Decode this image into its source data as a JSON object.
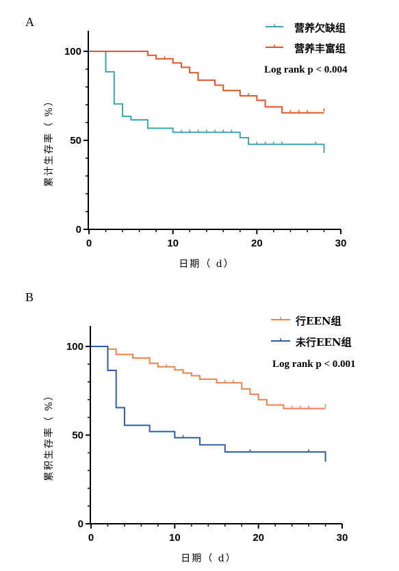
{
  "chart_data": [
    {
      "type": "line",
      "panel_label": "A",
      "xlabel": "日期（ d）",
      "ylabel": "累计生存率（ %）",
      "xlim": [
        0,
        30
      ],
      "ylim": [
        0,
        100
      ],
      "xticks": [
        0,
        10,
        20,
        30
      ],
      "yticks": [
        0,
        50,
        100
      ],
      "annotation": "Log rank p < 0.004",
      "legend_position": "top-right",
      "series": [
        {
          "name": "营养欠缺组",
          "color": "#3aa5b0",
          "steps": [
            [
              0,
              100
            ],
            [
              2,
              88.5
            ],
            [
              3,
              70.5
            ],
            [
              4,
              63.5
            ],
            [
              5,
              61.5
            ],
            [
              7,
              56.8
            ],
            [
              10,
              54.5
            ],
            [
              18,
              51.5
            ],
            [
              19,
              47.8
            ],
            [
              28,
              43
            ]
          ],
          "censors": [
            [
              11,
              54.5
            ],
            [
              12,
              54.5
            ],
            [
              13,
              54.5
            ],
            [
              14,
              54.5
            ],
            [
              15,
              54.5
            ],
            [
              16,
              54.5
            ],
            [
              17,
              54.5
            ],
            [
              20,
              47.8
            ],
            [
              21,
              47.8
            ],
            [
              22,
              47.8
            ],
            [
              23,
              47.8
            ],
            [
              27,
              47.8
            ]
          ]
        },
        {
          "name": "营养丰富组",
          "color": "#d9572b",
          "steps": [
            [
              0,
              100
            ],
            [
              7,
              97.8
            ],
            [
              8,
              95.8
            ],
            [
              10,
              93.5
            ],
            [
              11,
              91
            ],
            [
              12,
              88
            ],
            [
              13,
              83.8
            ],
            [
              15,
              81
            ],
            [
              16,
              78
            ],
            [
              18,
              75
            ],
            [
              20,
              72.5
            ],
            [
              21,
              68.8
            ],
            [
              23,
              65.5
            ],
            [
              28,
              65.5
            ]
          ],
          "censors": [
            [
              9,
              95.8
            ],
            [
              19,
              75
            ],
            [
              24,
              65.5
            ],
            [
              25,
              65.5
            ],
            [
              26,
              65.5
            ],
            [
              28,
              66.5
            ]
          ]
        }
      ]
    },
    {
      "type": "line",
      "panel_label": "B",
      "xlabel": "日期（ d）",
      "ylabel": "累积生存率（ %）",
      "xlim": [
        0,
        30
      ],
      "ylim": [
        0,
        100
      ],
      "xticks": [
        0,
        10,
        20,
        30
      ],
      "yticks": [
        0,
        50,
        100
      ],
      "annotation": "Log rank p < 0.001",
      "legend_position": "top-right",
      "series": [
        {
          "name": "行EEN组",
          "color": "#e8844a",
          "steps": [
            [
              0,
              100
            ],
            [
              2,
              98.5
            ],
            [
              3,
              95.5
            ],
            [
              5,
              93.5
            ],
            [
              7,
              90.5
            ],
            [
              8,
              88.5
            ],
            [
              10,
              86.8
            ],
            [
              11,
              85
            ],
            [
              12,
              83.5
            ],
            [
              13,
              81.5
            ],
            [
              15,
              79.5
            ],
            [
              18,
              76
            ],
            [
              19,
              73
            ],
            [
              20,
              70
            ],
            [
              21,
              67
            ],
            [
              23,
              65
            ],
            [
              28,
              65
            ]
          ],
          "censors": [
            [
              9,
              88.5
            ],
            [
              16,
              79.5
            ],
            [
              17,
              79.5
            ],
            [
              24,
              65
            ],
            [
              25,
              65
            ],
            [
              26,
              65
            ],
            [
              28,
              66
            ]
          ]
        },
        {
          "name": "未行EEN组",
          "color": "#2e5aa8",
          "steps": [
            [
              0,
              100
            ],
            [
              2,
              86.5
            ],
            [
              3,
              65.5
            ],
            [
              4,
              55.5
            ],
            [
              7,
              52
            ],
            [
              10,
              48.5
            ],
            [
              13,
              44.5
            ],
            [
              16,
              40.5
            ],
            [
              28,
              35
            ]
          ],
          "censors": [
            [
              11,
              48.5
            ],
            [
              19,
              40.5
            ],
            [
              26,
              40.5
            ]
          ]
        }
      ]
    }
  ]
}
